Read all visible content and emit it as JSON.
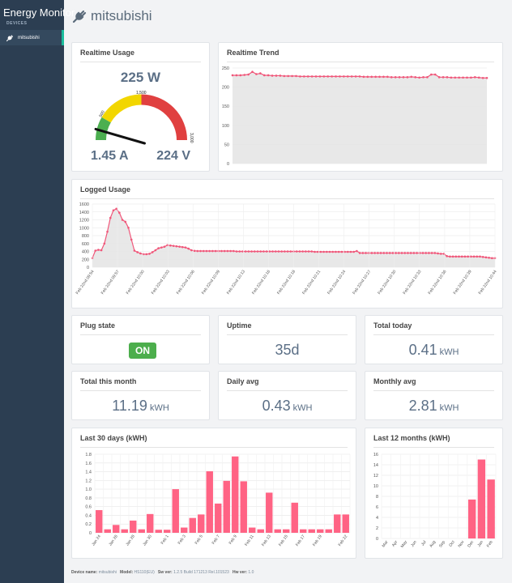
{
  "app": {
    "title": "Energy Monitor"
  },
  "sidebar": {
    "section": "DEVICES",
    "items": [
      {
        "label": "mitsubishi",
        "icon": "plug-icon"
      }
    ]
  },
  "header": {
    "title": "mitsubishi",
    "icon": "plug-icon"
  },
  "realtime_usage": {
    "title": "Realtime Usage",
    "power": "225 W",
    "current": "1.45 A",
    "voltage": "224 V",
    "gauge": {
      "min": 0,
      "max": 3000,
      "value": 225,
      "tick_500": "500",
      "tick_1500": "1,500",
      "tick_3000": "3,000",
      "colors": {
        "green": "#4caf50",
        "yellow": "#f2d600",
        "red": "#e04040",
        "needle": "#111111"
      }
    }
  },
  "realtime_trend": {
    "title": "Realtime Trend"
  },
  "logged_usage": {
    "title": "Logged Usage"
  },
  "plug_state": {
    "title": "Plug state",
    "value": "ON"
  },
  "uptime": {
    "title": "Uptime",
    "value": "35d"
  },
  "total_today": {
    "title": "Total today",
    "value": "0.41",
    "unit": "kWH"
  },
  "total_month": {
    "title": "Total this month",
    "value": "11.19",
    "unit": "kWH"
  },
  "daily_avg": {
    "title": "Daily avg",
    "value": "0.43",
    "unit": "kWH"
  },
  "monthly_avg": {
    "title": "Monthly avg",
    "value": "2.81",
    "unit": "kWH"
  },
  "last30": {
    "title": "Last 30 days (kWH)"
  },
  "last12": {
    "title": "Last 12 months (kWH)"
  },
  "footer": {
    "device_label": "Device name:",
    "device_value": "mitsubishi",
    "model_label": "Model:",
    "model_value": "HS110(EU)",
    "sw_label": "Sw ver:",
    "sw_value": "1.2.5 Build 171213 Rel.101523",
    "hw_label": "Hw ver:",
    "hw_value": "1.0"
  },
  "colors": {
    "line": "#f0577a",
    "fill": "#e6e6e6",
    "bar": "#ff6384",
    "accent": "#1abc9c",
    "sidebar": "#2c3e52"
  },
  "chart_data": [
    {
      "type": "line",
      "id": "realtime",
      "ylim": [
        0,
        250
      ],
      "yticks": [
        0,
        50,
        100,
        150,
        200,
        250
      ],
      "values": [
        231,
        231,
        231,
        232,
        233,
        240,
        234,
        236,
        231,
        231,
        230,
        230,
        230,
        229,
        229,
        229,
        229,
        228,
        228,
        228,
        228,
        228,
        228,
        228,
        228,
        228,
        228,
        228,
        228,
        228,
        228,
        228,
        228,
        227,
        227,
        227,
        227,
        227,
        227,
        227,
        226,
        226,
        226,
        226,
        226,
        227,
        226,
        225,
        226,
        226,
        233,
        233,
        226,
        226,
        226,
        225,
        225,
        225,
        225,
        225,
        225,
        226,
        225,
        224,
        224
      ]
    },
    {
      "type": "area",
      "id": "logged",
      "ylim": [
        0,
        1600
      ],
      "yticks": [
        0,
        200,
        400,
        600,
        800,
        1000,
        1200,
        1400,
        1600
      ],
      "xlabels": [
        "Feb 22nd 09:54",
        "Feb 22nd 09:57",
        "Feb 22nd 10:00",
        "Feb 22nd 10:03",
        "Feb 22nd 10:06",
        "Feb 22nd 10:09",
        "Feb 22nd 10:13",
        "Feb 22nd 10:16",
        "Feb 22nd 10:18",
        "Feb 22nd 10:21",
        "Feb 22nd 10:24",
        "Feb 22nd 10:27",
        "Feb 22nd 10:30",
        "Feb 22nd 10:33",
        "Feb 22nd 10:36",
        "Feb 22nd 10:39",
        "Feb 22nd 10:44"
      ],
      "values": [
        230,
        420,
        440,
        430,
        600,
        900,
        1250,
        1440,
        1480,
        1380,
        1200,
        1150,
        1000,
        700,
        420,
        380,
        350,
        330,
        330,
        340,
        380,
        430,
        480,
        500,
        520,
        560,
        550,
        540,
        530,
        520,
        510,
        500,
        470,
        430,
        415,
        410,
        410,
        410,
        410,
        410,
        410,
        410,
        410,
        410,
        410,
        410,
        410,
        410,
        400,
        400,
        400,
        400,
        400,
        400,
        400,
        400,
        400,
        400,
        400,
        400,
        400,
        400,
        400,
        400,
        400,
        400,
        400,
        400,
        400,
        400,
        400,
        400,
        400,
        400,
        390,
        390,
        390,
        390,
        390,
        390,
        390,
        390,
        390,
        390,
        390,
        390,
        390,
        390,
        410,
        360,
        360,
        360,
        360,
        360,
        360,
        360,
        360,
        360,
        360,
        360,
        360,
        360,
        360,
        360,
        360,
        360,
        360,
        360,
        360,
        360,
        360,
        360,
        360,
        360,
        360,
        350,
        340,
        340,
        280,
        270,
        270,
        270,
        270,
        270,
        270,
        270,
        270,
        270,
        270,
        270,
        260,
        250,
        240,
        230,
        230
      ]
    },
    {
      "type": "bar",
      "id": "last30",
      "ylim": [
        0,
        1.8
      ],
      "yticks": [
        0,
        0.2,
        0.4,
        0.6,
        0.8,
        1.0,
        1.2,
        1.4,
        1.6,
        1.8
      ],
      "ytick_labels": [
        "0",
        "0.2",
        "0.4",
        "0.6",
        "0.8",
        "1.0",
        "1.2",
        "1.4",
        "1.6",
        "1.8"
      ],
      "categories": [
        "Jan 24",
        "Jan 25",
        "Jan 26",
        "Jan 27",
        "Jan 28",
        "Jan 29",
        "Jan 30",
        "Jan 31",
        "Feb 1",
        "Feb 2",
        "Feb 3",
        "Feb 4",
        "Feb 5",
        "Feb 6",
        "Feb 7",
        "Feb 8",
        "Feb 9",
        "Feb 10",
        "Feb 11",
        "Feb 12",
        "Feb 13",
        "Feb 14",
        "Feb 15",
        "Feb 16",
        "Feb 17",
        "Feb 18",
        "Feb 19",
        "Feb 20",
        "Feb 21",
        "Feb 22"
      ],
      "xlabels": [
        "Jan 24",
        "Jan 26",
        "Jan 28",
        "Jan 30",
        "Feb 1",
        "Feb 3",
        "Feb 5",
        "Feb 7",
        "Feb 9",
        "Feb 11",
        "Feb 13",
        "Feb 15",
        "Feb 17",
        "Feb 19",
        "Feb 22"
      ],
      "xlabel_idx": [
        0,
        2,
        4,
        6,
        8,
        10,
        12,
        14,
        16,
        18,
        20,
        22,
        24,
        26,
        29
      ],
      "values": [
        0.52,
        0.08,
        0.18,
        0.08,
        0.28,
        0.08,
        0.43,
        0.07,
        0.07,
        1.0,
        0.12,
        0.34,
        0.42,
        1.41,
        0.67,
        1.19,
        1.75,
        1.18,
        0.12,
        0.08,
        0.92,
        0.08,
        0.08,
        0.69,
        0.08,
        0.08,
        0.08,
        0.08,
        0.42,
        0.42
      ]
    },
    {
      "type": "bar",
      "id": "last12",
      "ylim": [
        0,
        16
      ],
      "yticks": [
        0,
        2,
        4,
        6,
        8,
        10,
        12,
        14,
        16
      ],
      "categories": [
        "Mar",
        "Apr",
        "May",
        "Jun",
        "Jul",
        "Aug",
        "Sep",
        "Oct",
        "Nov",
        "Dec",
        "Jan",
        "Feb"
      ],
      "values": [
        0,
        0,
        0,
        0,
        0,
        0,
        0,
        0,
        0,
        7.4,
        15.0,
        11.2
      ]
    }
  ]
}
